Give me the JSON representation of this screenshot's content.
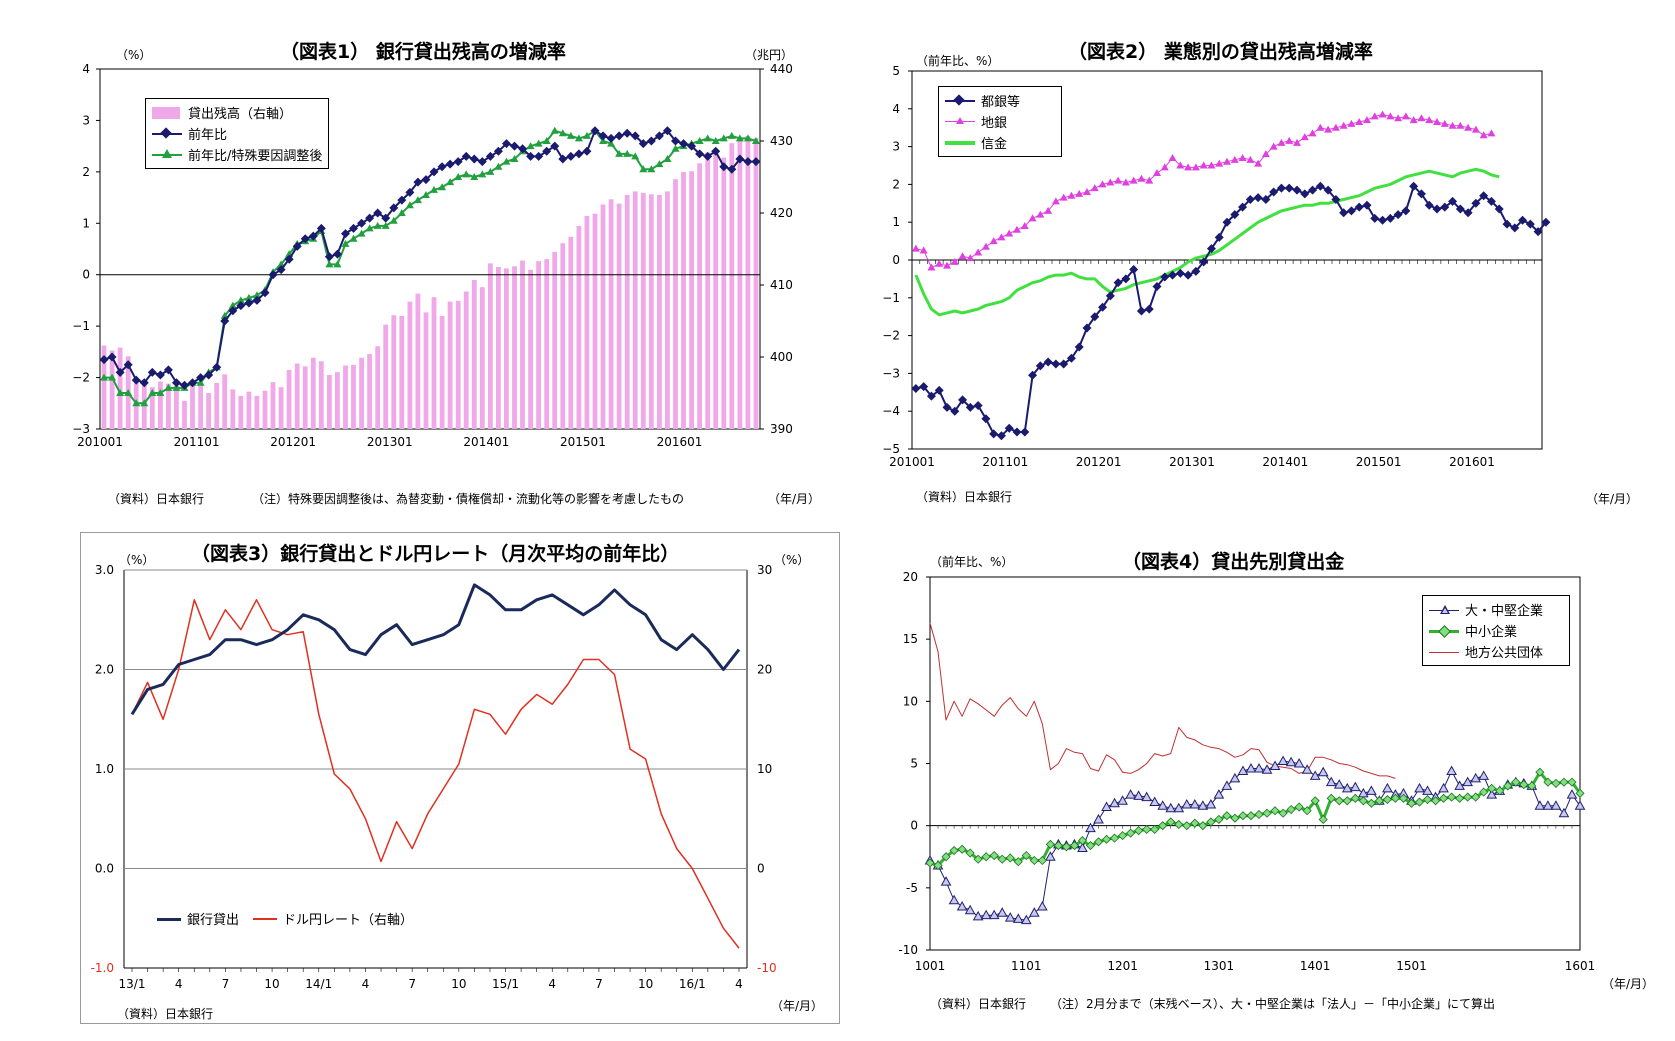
{
  "chart_data": [
    {
      "id": "c1",
      "type": "bar+line",
      "title": "（図表1）  銀行貸出残高の増減率",
      "ylabel_left": "（%）",
      "ylabel_right": "（兆円）",
      "source": "（資料）日本銀行",
      "note": "（注）特殊要因調整後は、為替変動・債権償却・流動化等の影響を考慮したもの",
      "xunit": "（年/月）",
      "ylim_left": [
        -3,
        4
      ],
      "yticks_left": [
        "4",
        "3",
        "2",
        "1",
        "0",
        "−1",
        "−2",
        "−3"
      ],
      "ylim_right": [
        390,
        440
      ],
      "yticks_right": [
        "440",
        "430",
        "420",
        "410",
        "400",
        "390"
      ],
      "x_tick_labels": [
        "201001",
        "201101",
        "201201",
        "201301",
        "201401",
        "201501",
        "201601"
      ],
      "legend": [
        "貸出残高（右軸）",
        "前年比",
        "前年比/特殊要因調整後"
      ],
      "colors": {
        "bar": "#f0a8e8",
        "line1": "#1a1a6e",
        "line2": "#22a040"
      },
      "bar_balance": [
        401.6,
        400.9,
        401.3,
        400.1,
        397.1,
        396.5,
        395.8,
        396.6,
        396.3,
        396.0,
        393.9,
        396.2,
        396.1,
        395.0,
        396.4,
        397.6,
        395.5,
        394.6,
        395.2,
        394.6,
        395.3,
        396.5,
        395.8,
        398.2,
        399.1,
        398.7,
        399.9,
        399.4,
        397.5,
        397.9,
        398.8,
        398.9,
        399.9,
        400.4,
        401.5,
        404.5,
        405.8,
        405.7,
        407.7,
        408.8,
        406.2,
        408.3,
        405.7,
        407.7,
        407.8,
        409.1,
        410.7,
        409.7,
        413.0,
        412.5,
        412.3,
        412.6,
        413.4,
        412.1,
        413.3,
        413.6,
        414.6,
        415.8,
        416.7,
        418.2,
        419.6,
        419.9,
        421.2,
        421.9,
        421.3,
        422.5,
        423.0,
        422.8,
        422.6,
        422.5,
        423.0,
        424.7,
        425.7,
        425.8,
        426.9,
        428.4,
        428.6,
        427.7,
        429.7,
        430.0,
        430.7,
        430.4
      ],
      "series": [
        {
          "name": "前年比",
          "values": [
            -1.65,
            -1.6,
            -1.9,
            -1.75,
            -2.05,
            -2.1,
            -1.9,
            -1.95,
            -1.85,
            -2.1,
            -2.15,
            -2.1,
            -2.0,
            -1.95,
            -1.8,
            -0.9,
            -0.7,
            -0.6,
            -0.55,
            -0.5,
            -0.35,
            0.0,
            0.1,
            0.3,
            0.55,
            0.7,
            0.75,
            0.9,
            0.35,
            0.4,
            0.8,
            0.9,
            1.0,
            1.1,
            1.2,
            1.1,
            1.3,
            1.45,
            1.6,
            1.8,
            1.85,
            2.0,
            2.1,
            2.15,
            2.2,
            2.3,
            2.25,
            2.2,
            2.3,
            2.4,
            2.55,
            2.5,
            2.45,
            2.3,
            2.3,
            2.4,
            2.5,
            2.25,
            2.3,
            2.35,
            2.4,
            2.8,
            2.7,
            2.65,
            2.7,
            2.75,
            2.7,
            2.55,
            2.6,
            2.7,
            2.8,
            2.6,
            2.55,
            2.5,
            2.35,
            2.3,
            2.4,
            2.1,
            2.05,
            2.25,
            2.2,
            2.2
          ]
        },
        {
          "name": "前年比/特殊要因調整後",
          "values": [
            -2.0,
            -2.0,
            -2.3,
            -2.3,
            -2.5,
            -2.5,
            -2.3,
            -2.3,
            -2.2,
            -2.2,
            -2.2,
            -2.1,
            -2.1,
            -1.9,
            -1.8,
            -0.8,
            -0.6,
            -0.5,
            -0.45,
            -0.4,
            -0.3,
            0.05,
            0.2,
            0.4,
            0.6,
            0.65,
            0.7,
            0.85,
            0.2,
            0.2,
            0.6,
            0.7,
            0.8,
            0.9,
            0.95,
            0.95,
            1.05,
            1.2,
            1.35,
            1.45,
            1.55,
            1.65,
            1.7,
            1.8,
            1.9,
            1.95,
            1.9,
            1.95,
            2.0,
            2.1,
            2.2,
            2.25,
            2.4,
            2.5,
            2.55,
            2.6,
            2.8,
            2.75,
            2.7,
            2.65,
            2.7,
            2.8,
            2.6,
            2.55,
            2.35,
            2.35,
            2.3,
            2.05,
            2.05,
            2.15,
            2.25,
            2.45,
            2.5,
            2.55,
            2.6,
            2.65,
            2.6,
            2.65,
            2.7,
            2.65,
            2.65,
            2.6
          ]
        }
      ]
    },
    {
      "id": "c2",
      "type": "line",
      "title": "（図表2）  業態別の貸出残高増減率",
      "ylabel": "（前年比、%）",
      "source": "（資料）日本銀行",
      "xunit": "（年/月）",
      "ylim": [
        -5,
        5
      ],
      "yticks": [
        "5",
        "4",
        "3",
        "2",
        "1",
        "0",
        "−1",
        "−2",
        "−3",
        "−4",
        "−5"
      ],
      "x_tick_labels": [
        "201001",
        "201101",
        "201201",
        "201301",
        "201401",
        "201501",
        "201601"
      ],
      "legend": [
        "都銀等",
        "地銀",
        "信金"
      ],
      "colors": {
        "city": "#1a1a6e",
        "regional": "#e040e0",
        "shinkin": "#40e040"
      },
      "series": [
        {
          "name": "都銀等",
          "values": [
            -3.4,
            -3.35,
            -3.6,
            -3.45,
            -3.9,
            -4.0,
            -3.7,
            -3.9,
            -3.85,
            -4.2,
            -4.6,
            -4.65,
            -4.45,
            -4.55,
            -4.55,
            -3.05,
            -2.8,
            -2.7,
            -2.75,
            -2.75,
            -2.6,
            -2.3,
            -1.8,
            -1.5,
            -1.25,
            -0.95,
            -0.6,
            -0.5,
            -0.25,
            -1.35,
            -1.3,
            -0.7,
            -0.45,
            -0.4,
            -0.35,
            -0.4,
            -0.3,
            -0.05,
            0.3,
            0.6,
            1.0,
            1.2,
            1.4,
            1.6,
            1.65,
            1.6,
            1.8,
            1.9,
            1.9,
            1.85,
            1.75,
            1.85,
            1.95,
            1.85,
            1.6,
            1.25,
            1.3,
            1.4,
            1.45,
            1.1,
            1.05,
            1.1,
            1.2,
            1.3,
            1.95,
            1.75,
            1.45,
            1.35,
            1.4,
            1.55,
            1.35,
            1.25,
            1.5,
            1.7,
            1.55,
            1.35,
            0.95,
            0.85,
            1.05,
            0.95,
            0.75,
            1.0
          ]
        },
        {
          "name": "地銀",
          "values": [
            0.3,
            0.25,
            -0.2,
            -0.1,
            -0.15,
            -0.05,
            0.1,
            0.05,
            0.2,
            0.35,
            0.5,
            0.6,
            0.7,
            0.8,
            0.9,
            1.1,
            1.2,
            1.3,
            1.55,
            1.65,
            1.7,
            1.75,
            1.8,
            1.9,
            2.0,
            2.05,
            2.1,
            2.05,
            2.1,
            2.15,
            2.1,
            2.3,
            2.45,
            2.7,
            2.5,
            2.45,
            2.45,
            2.5,
            2.5,
            2.55,
            2.6,
            2.65,
            2.7,
            2.65,
            2.55,
            2.8,
            3.0,
            3.1,
            3.15,
            3.1,
            3.25,
            3.35,
            3.5,
            3.45,
            3.5,
            3.55,
            3.6,
            3.65,
            3.7,
            3.8,
            3.85,
            3.8,
            3.75,
            3.8,
            3.7,
            3.75,
            3.7,
            3.65,
            3.6,
            3.55,
            3.55,
            3.5,
            3.45,
            3.3,
            3.35
          ]
        },
        {
          "name": "信金",
          "values": [
            -0.4,
            -0.9,
            -1.3,
            -1.45,
            -1.4,
            -1.35,
            -1.4,
            -1.35,
            -1.3,
            -1.2,
            -1.15,
            -1.1,
            -1.0,
            -0.8,
            -0.7,
            -0.6,
            -0.55,
            -0.45,
            -0.4,
            -0.4,
            -0.35,
            -0.45,
            -0.5,
            -0.5,
            -0.7,
            -0.85,
            -0.8,
            -0.75,
            -0.65,
            -0.6,
            -0.55,
            -0.5,
            -0.4,
            -0.3,
            -0.2,
            -0.05,
            0.05,
            0.1,
            0.15,
            0.25,
            0.4,
            0.55,
            0.7,
            0.85,
            1.0,
            1.1,
            1.2,
            1.3,
            1.35,
            1.4,
            1.45,
            1.45,
            1.5,
            1.5,
            1.55,
            1.6,
            1.65,
            1.7,
            1.8,
            1.9,
            1.95,
            2.0,
            2.1,
            2.2,
            2.25,
            2.3,
            2.35,
            2.3,
            2.25,
            2.2,
            2.3,
            2.35,
            2.4,
            2.35,
            2.25,
            2.2
          ]
        }
      ]
    },
    {
      "id": "c3",
      "type": "line",
      "title": "（図表3）銀行貸出とドル円レート（月次平均の前年比）",
      "ylabel_left": "（%）",
      "ylabel_right": "（%）",
      "source": "（資料）日本銀行",
      "xunit": "（年/月）",
      "ylim_left": [
        -1.0,
        3.0
      ],
      "yticks_left": [
        "3.0",
        "2.0",
        "1.0",
        "0.0",
        "-1.0"
      ],
      "ylim_right": [
        -10,
        30
      ],
      "yticks_right": [
        "30",
        "20",
        "10",
        "0",
        "-10"
      ],
      "x_tick_labels": [
        "13/1",
        "4",
        "7",
        "10",
        "14/1",
        "4",
        "7",
        "10",
        "15/1",
        "4",
        "7",
        "10",
        "16/1",
        "4"
      ],
      "legend": [
        "銀行貸出",
        "ドル円レート（右軸）"
      ],
      "colors": {
        "loan": "#1a2a5a",
        "fx": "#e03020"
      },
      "series": [
        {
          "name": "銀行貸出",
          "values": [
            1.55,
            1.8,
            1.85,
            2.05,
            2.1,
            2.15,
            2.3,
            2.3,
            2.25,
            2.3,
            2.4,
            2.55,
            2.5,
            2.4,
            2.2,
            2.15,
            2.35,
            2.45,
            2.25,
            2.3,
            2.35,
            2.45,
            2.85,
            2.75,
            2.6,
            2.6,
            2.7,
            2.75,
            2.65,
            2.55,
            2.65,
            2.8,
            2.65,
            2.55,
            2.3,
            2.2,
            2.35,
            2.2,
            2.0,
            2.2
          ]
        },
        {
          "name": "ドル円レート（右軸）",
          "values": [
            15.5,
            18.7,
            15.0,
            20.0,
            27.0,
            23.0,
            26.0,
            24.0,
            27.0,
            24.0,
            23.5,
            23.8,
            15.5,
            9.5,
            8.0,
            5.0,
            0.7,
            4.7,
            2.0,
            5.5,
            8.0,
            10.5,
            16.0,
            15.5,
            13.5,
            16.0,
            17.5,
            16.5,
            18.5,
            21.0,
            21.0,
            19.5,
            12.0,
            11.0,
            5.5,
            2.0,
            0.0,
            -3.0,
            -6.0,
            -8.0
          ]
        }
      ]
    },
    {
      "id": "c4",
      "type": "line",
      "title": "（図表4）貸出先別貸出金",
      "ylabel": "（前年比、%）",
      "source": "（資料）日本銀行",
      "note": "（注）2月分まで（末残ベース）、大・中堅企業は「法人」－「中小企業」にて算出",
      "xunit": "（年/月）",
      "ylim": [
        -10,
        20
      ],
      "yticks": [
        "20",
        "15",
        "10",
        "5",
        "0",
        "-5",
        "-10"
      ],
      "x_tick_labels": [
        "1001",
        "1101",
        "1201",
        "1301",
        "1401",
        "1501",
        "1601"
      ],
      "legend": [
        "大・中堅企業",
        "中小企業",
        "地方公共団体"
      ],
      "colors": {
        "large": "#202070",
        "sme": "#30b030",
        "local": "#c03030"
      },
      "series": [
        {
          "name": "大・中堅企業",
          "values": [
            -2.8,
            -3.2,
            -4.5,
            -6.0,
            -6.5,
            -6.8,
            -7.3,
            -7.2,
            -7.2,
            -7.0,
            -7.4,
            -7.5,
            -7.6,
            -7.0,
            -6.5,
            -2.5,
            -1.5,
            -1.6,
            -1.5,
            -1.8,
            -0.2,
            0.5,
            1.5,
            1.8,
            2.0,
            2.5,
            2.4,
            2.3,
            1.9,
            1.6,
            1.4,
            1.4,
            1.7,
            1.7,
            1.6,
            1.7,
            2.5,
            3.2,
            3.8,
            4.4,
            4.6,
            4.6,
            4.5,
            4.8,
            5.2,
            5.1,
            5.0,
            4.5,
            4.0,
            4.3,
            3.5,
            3.3,
            3.0,
            3.1,
            2.6,
            2.8,
            2.0,
            3.0,
            2.5,
            2.6,
            2.0,
            3.0,
            2.8,
            2.3,
            3.0,
            4.4,
            3.2,
            3.5,
            3.8,
            4.0,
            2.5,
            2.8,
            3.3,
            3.5,
            3.4,
            3.2,
            1.6,
            1.6,
            1.6,
            1.0,
            2.5,
            1.6
          ]
        },
        {
          "name": "中小企業",
          "values": [
            -3.0,
            -3.2,
            -2.5,
            -2.0,
            -1.9,
            -2.2,
            -2.7,
            -2.5,
            -2.4,
            -2.7,
            -2.6,
            -2.9,
            -2.4,
            -2.8,
            -2.8,
            -1.5,
            -1.6,
            -1.7,
            -1.6,
            -1.2,
            -1.6,
            -1.3,
            -1.1,
            -1.0,
            -0.8,
            -0.6,
            -0.4,
            -0.3,
            -0.3,
            0.0,
            0.3,
            0.1,
            0.0,
            0.2,
            0.0,
            0.3,
            0.5,
            0.8,
            0.6,
            0.8,
            0.8,
            0.9,
            1.0,
            1.2,
            1.0,
            1.3,
            1.5,
            1.2,
            2.0,
            0.5,
            2.2,
            2.0,
            2.0,
            2.2,
            2.0,
            1.8,
            2.0,
            2.1,
            2.2,
            2.2,
            1.8,
            1.9,
            2.1,
            2.0,
            2.2,
            2.3,
            2.2,
            2.3,
            2.3,
            2.7,
            3.0,
            2.8,
            3.2,
            3.5,
            3.3,
            3.2,
            4.3,
            3.5,
            3.4,
            3.5,
            3.5,
            2.6
          ]
        },
        {
          "name": "地方公共団体",
          "values": [
            16.3,
            14.0,
            8.5,
            10.0,
            8.8,
            10.2,
            9.8,
            9.3,
            8.8,
            9.7,
            10.3,
            9.4,
            8.8,
            10.0,
            8.2,
            4.5,
            5.0,
            6.2,
            5.9,
            5.8,
            4.6,
            4.4,
            5.7,
            5.3,
            4.3,
            4.2,
            4.5,
            5.0,
            5.8,
            5.6,
            5.8,
            7.9,
            7.1,
            6.9,
            6.5,
            6.3,
            6.2,
            5.9,
            5.5,
            5.7,
            6.2,
            6.1,
            5.1,
            4.8,
            4.7,
            4.6,
            4.2,
            4.4,
            5.5,
            5.5,
            5.3,
            5.0,
            4.9,
            4.7,
            4.4,
            4.2,
            4.0,
            4.0,
            3.8
          ]
        }
      ]
    }
  ]
}
